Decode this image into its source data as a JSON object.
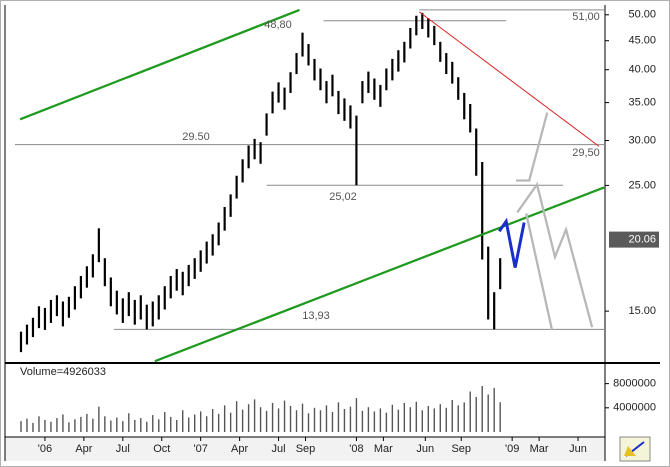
{
  "chart_data": {
    "type": "range-bar",
    "y_scale": "log",
    "color": "#000000",
    "xlim": [
      0,
      197
    ],
    "ylim": [
      12.2,
      51.4
    ],
    "yticks": [
      {
        "value": 15,
        "label": "15.00"
      },
      {
        "value": 25,
        "label": "25.00"
      },
      {
        "value": 30,
        "label": "30.00"
      },
      {
        "value": 35,
        "label": "35.00"
      },
      {
        "value": 40,
        "label": "40.00"
      },
      {
        "value": 45,
        "label": "45.00"
      },
      {
        "value": 50,
        "label": "50.00"
      }
    ],
    "xticks": [
      {
        "value": 10,
        "label": "'06"
      },
      {
        "value": 23,
        "label": "Apr"
      },
      {
        "value": 36,
        "label": "Jul"
      },
      {
        "value": 49,
        "label": "Oct"
      },
      {
        "value": 62,
        "label": "'07"
      },
      {
        "value": 75,
        "label": "Apr"
      },
      {
        "value": 88,
        "label": "Jul"
      },
      {
        "value": 97,
        "label": "Sep"
      },
      {
        "value": 114,
        "label": "'08"
      },
      {
        "value": 123,
        "label": "Mar"
      },
      {
        "value": 137,
        "label": "Jun"
      },
      {
        "value": 149,
        "label": "Sep"
      },
      {
        "value": 166,
        "label": "'09"
      },
      {
        "value": 175,
        "label": "Mar"
      },
      {
        "value": 188,
        "label": "Jun"
      }
    ],
    "x": [
      2,
      4,
      6,
      8,
      10,
      12,
      14,
      16,
      18,
      20,
      22,
      24,
      26,
      28,
      30,
      32,
      34,
      36,
      38,
      40,
      42,
      44,
      46,
      48,
      50,
      52,
      54,
      56,
      58,
      60,
      62,
      64,
      66,
      68,
      70,
      72,
      74,
      76,
      78,
      80,
      82,
      84,
      86,
      88,
      90,
      92,
      94,
      96,
      98,
      100,
      102,
      104,
      106,
      108,
      110,
      112,
      114,
      116,
      118,
      120,
      122,
      124,
      126,
      128,
      130,
      132,
      134,
      136,
      138,
      140,
      142,
      144,
      146,
      148,
      150,
      152,
      154,
      156,
      158,
      160,
      162
    ],
    "high": [
      13.8,
      14.2,
      14.6,
      15.3,
      15.2,
      15.7,
      16.0,
      15.6,
      15.9,
      16.6,
      17.3,
      18.0,
      18.9,
      21.0,
      18.6,
      17.2,
      16.3,
      15.8,
      16.2,
      15.7,
      16.0,
      15.4,
      15.6,
      16.0,
      16.6,
      17.3,
      17.8,
      17.6,
      18.1,
      18.6,
      19.2,
      19.9,
      20.5,
      21.5,
      22.9,
      24.1,
      26.0,
      27.8,
      29.4,
      30.2,
      29.8,
      33.5,
      36.6,
      38.0,
      37.2,
      39.6,
      42.8,
      46.5,
      44.4,
      41.8,
      40.2,
      38.2,
      39.2,
      36.7,
      35.6,
      34.6,
      33.2,
      38.2,
      39.7,
      38.6,
      37.6,
      40.2,
      41.8,
      43.3,
      44.8,
      47.4,
      49.8,
      50.4,
      49.3,
      47.8,
      44.8,
      42.8,
      41.3,
      38.8,
      36.4,
      34.8,
      31.5,
      27.5,
      19.5,
      16.2,
      18.6
    ],
    "low": [
      12.7,
      13.1,
      13.5,
      14.0,
      13.9,
      14.3,
      14.7,
      14.1,
      14.6,
      15.1,
      15.8,
      16.5,
      17.2,
      18.3,
      16.6,
      15.3,
      14.8,
      14.3,
      14.7,
      14.2,
      14.5,
      13.93,
      14.1,
      14.5,
      15.1,
      15.8,
      16.3,
      16.0,
      16.6,
      17.1,
      17.6,
      18.2,
      18.8,
      19.6,
      20.8,
      22.0,
      23.7,
      25.3,
      26.8,
      27.8,
      27.3,
      30.6,
      33.5,
      35.0,
      34.0,
      36.4,
      39.3,
      42.2,
      40.7,
      38.3,
      36.8,
      34.9,
      35.9,
      33.4,
      32.5,
      31.5,
      25.02,
      34.9,
      36.4,
      35.4,
      34.4,
      36.8,
      38.3,
      39.7,
      41.2,
      43.6,
      46.0,
      47.2,
      45.6,
      44.2,
      41.3,
      39.3,
      37.8,
      35.4,
      32.7,
      31.0,
      26.0,
      18.5,
      14.5,
      13.93,
      16.4
    ],
    "last_price": {
      "value": 20.06,
      "label": "20.06"
    },
    "levels": [
      {
        "value": 51,
        "label": "51,00",
        "from": 135,
        "to": 197
      },
      {
        "value": 48.8,
        "label": "48,80",
        "from": 103,
        "to": 164
      },
      {
        "value": 29.5,
        "label": "29.50",
        "label_right": "29,50",
        "from": 0,
        "to": 197
      },
      {
        "value": 25.02,
        "label": "25,02",
        "from": 84,
        "to": 183
      },
      {
        "value": 13.93,
        "label": "13,93",
        "from": 33,
        "to": 197
      }
    ],
    "lines": [
      {
        "color": "#1f9a1f",
        "points": [
          [
            1.7,
            32.7
          ],
          [
            95,
            51.0
          ]
        ]
      },
      {
        "color": "#1f9a1f",
        "points": [
          [
            46.7,
            12.24
          ],
          [
            196.7,
            24.8
          ]
        ]
      },
      {
        "color": "#dd2222",
        "points": [
          [
            135,
            50.6
          ],
          [
            195,
            29.3
          ]
        ]
      },
      {
        "color": "#1a2ecc",
        "points": [
          [
            161.7,
            20.75
          ],
          [
            164,
            21.6
          ],
          [
            167,
            17.9
          ],
          [
            170,
            21.5
          ]
        ]
      },
      {
        "color": "#b8b8b8",
        "points": [
          [
            167.3,
            25.5
          ],
          [
            171.7,
            25.5
          ],
          [
            177.7,
            33.6
          ]
        ]
      },
      {
        "color": "#b8b8b8",
        "points": [
          [
            167.7,
            22.4
          ],
          [
            174.3,
            25.1
          ],
          [
            180.3,
            18.7
          ],
          [
            184,
            20.9
          ],
          [
            192.7,
            14.05
          ]
        ]
      },
      {
        "color": "#b8b8b8",
        "points": [
          [
            170.7,
            22.3
          ],
          [
            179.3,
            13.9
          ]
        ]
      }
    ],
    "volume": {
      "label": "Volume=4926033",
      "color": "#555555",
      "ylim": [
        0,
        8600000
      ],
      "yticks": [
        4000000,
        8000000
      ],
      "values": [
        1800000,
        2200000,
        1500000,
        2600000,
        2000000,
        1700000,
        2300000,
        2900000,
        1600000,
        2100000,
        2500000,
        3000000,
        2200000,
        4200000,
        2600000,
        1900000,
        2400000,
        1800000,
        3100000,
        2000000,
        2300000,
        1700000,
        2800000,
        2100000,
        3300000,
        2500000,
        2000000,
        3600000,
        2400000,
        2900000,
        3400000,
        2600000,
        3800000,
        3000000,
        4400000,
        3200000,
        5100000,
        3700000,
        4600000,
        5400000,
        4100000,
        3500000,
        4800000,
        3900000,
        5200000,
        4300000,
        3600000,
        4700000,
        3100000,
        4000000,
        3600000,
        4400000,
        3300000,
        4900000,
        3800000,
        4200000,
        5600000,
        3500000,
        4100000,
        3400000,
        3900000,
        3200000,
        4500000,
        3700000,
        4800000,
        4100000,
        5000000,
        3600000,
        4300000,
        3900000,
        4600000,
        4000000,
        5300000,
        4400000,
        4900000,
        6700000,
        5800000,
        7600000,
        6200000,
        7300000,
        4926033
      ]
    }
  }
}
